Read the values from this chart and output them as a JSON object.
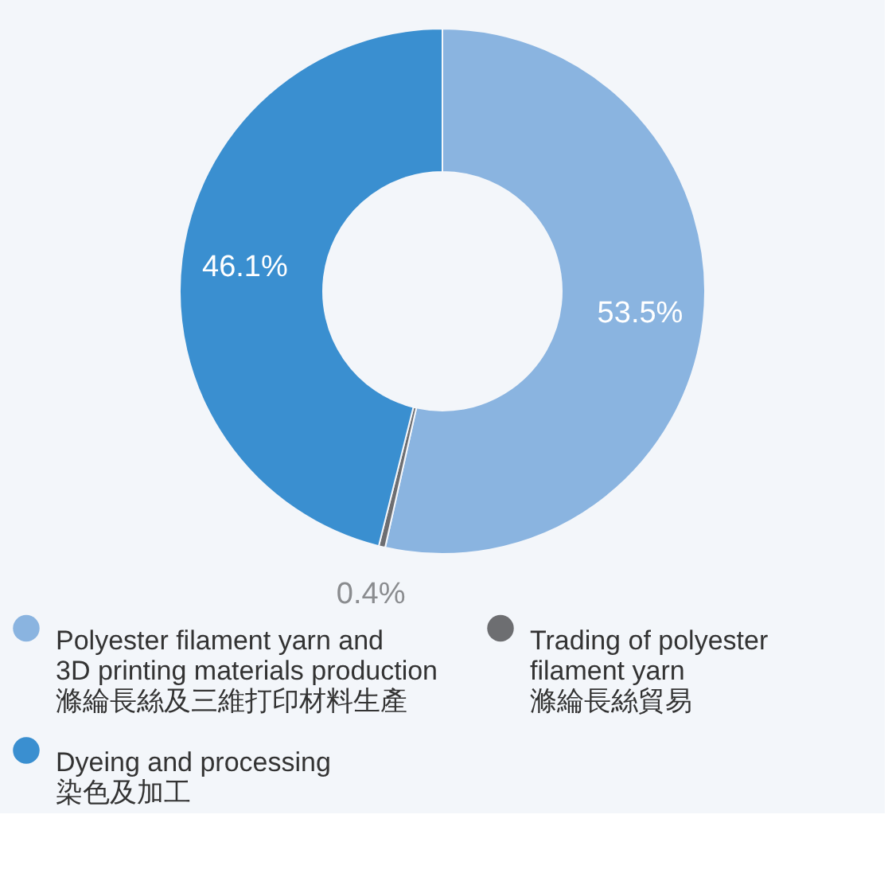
{
  "chart_data": {
    "type": "donut",
    "categories": [
      "Polyester filament yarn and\n3D printing materials production\n滌綸長絲及三維打印材料生產",
      "Trading of polyester\nfilament yarn\n滌綸長絲貿易",
      "Dyeing and processing\n染色及加工"
    ],
    "values": [
      53.5,
      0.4,
      46.1
    ],
    "colors": [
      "#8ab4e0",
      "#6d6e71",
      "#3a8fd0"
    ],
    "value_labels": [
      "53.5%",
      "0.4%",
      "46.1%"
    ],
    "legend": "bottom"
  }
}
